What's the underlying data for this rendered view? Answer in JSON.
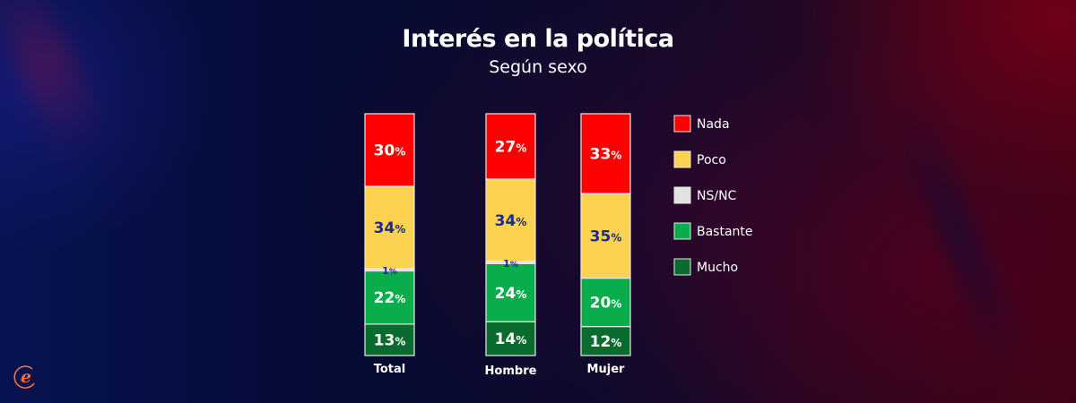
{
  "header": {
    "title": "Interés en la política",
    "subtitle": "Según sexo"
  },
  "logo": {
    "icon": "e-logo-icon",
    "color": "#f0703a"
  },
  "chart_data": {
    "type": "bar",
    "stacked": true,
    "orientation": "vertical",
    "title": "Interés en la política",
    "subtitle": "Según sexo",
    "xlabel": "",
    "ylabel": "",
    "ylim": [
      0,
      100
    ],
    "grid": false,
    "legend_position": "right",
    "categories": [
      "Total",
      "Hombre",
      "Mujer"
    ],
    "series": [
      {
        "name": "Mucho",
        "color": "#0a6b2e",
        "label_color": "#ffffff",
        "values": [
          13,
          14,
          12
        ],
        "labels": [
          "13%",
          "14%",
          "12%"
        ]
      },
      {
        "name": "Bastante",
        "color": "#0aad4c",
        "label_color": "#ffffff",
        "values": [
          22,
          24,
          20
        ],
        "labels": [
          "22%",
          "24%",
          "20%"
        ]
      },
      {
        "name": "NS/NC",
        "color": "#e2e2e2",
        "label_color": "#1e2a8c",
        "values": [
          1,
          1,
          0
        ],
        "labels": [
          "1%",
          "1%",
          ""
        ]
      },
      {
        "name": "Poco",
        "color": "#fdd250",
        "label_color": "#1e2a8c",
        "values": [
          34,
          34,
          35
        ],
        "labels": [
          "34%",
          "34%",
          "35%"
        ]
      },
      {
        "name": "Nada",
        "color": "#fe0000",
        "label_color": "#ffffff",
        "values": [
          30,
          27,
          33
        ],
        "labels": [
          "30%",
          "27%",
          "33%"
        ]
      }
    ],
    "legend": [
      "Nada",
      "Poco",
      "NS/NC",
      "Bastante",
      "Mucho"
    ]
  }
}
